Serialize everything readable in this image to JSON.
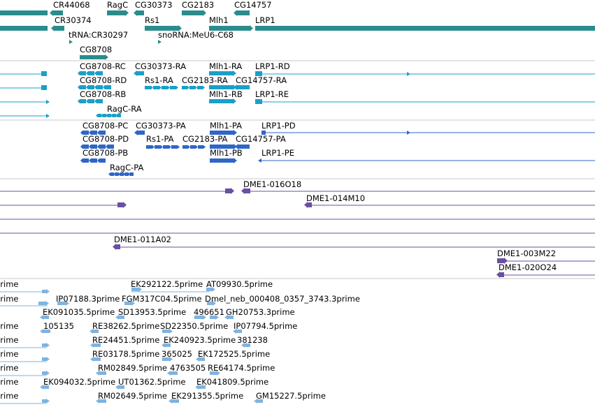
{
  "colors": {
    "teal": "#2a8c8c",
    "transcript": "#1aa0c8",
    "protein": "#2f66c8",
    "bac": "#6a4fa3",
    "est": "#7fb3e0",
    "divider": "#c8c8c8"
  },
  "tracks": [
    {
      "id": "genes",
      "color_key": "teal",
      "label_rows": [
        {
          "labels": [
            {
              "id": "cr44068",
              "text": "CR44068"
            },
            {
              "id": "ragc",
              "text": "RagC"
            },
            {
              "id": "cg30373",
              "text": "CG30373"
            },
            {
              "id": "cg2183",
              "text": "CG2183"
            },
            {
              "id": "cg14757",
              "text": "CG14757"
            }
          ]
        },
        {
          "labels": [
            {
              "id": "cr30374",
              "text": "CR30374"
            },
            {
              "id": "rs1",
              "text": "Rs1"
            },
            {
              "id": "mlh1",
              "text": "Mlh1"
            },
            {
              "id": "lrp1",
              "text": "LRP1"
            }
          ]
        },
        {
          "labels": [
            {
              "id": "trna-cr30297",
              "text": "tRNA:CR30297"
            },
            {
              "id": "snorna-meu6-c68",
              "text": "snoRNA:MeU6-C68"
            }
          ]
        },
        {
          "labels": [
            {
              "id": "cg8708",
              "text": "CG8708"
            }
          ]
        }
      ]
    },
    {
      "id": "transcripts",
      "color_key": "transcript",
      "label_rows": [
        {
          "labels": [
            {
              "id": "cg8708-rc",
              "text": "CG8708-RC"
            },
            {
              "id": "cg30373-ra",
              "text": "CG30373-RA"
            },
            {
              "id": "mlh1-ra",
              "text": "Mlh1-RA"
            },
            {
              "id": "lrp1-rd",
              "text": "LRP1-RD"
            }
          ]
        },
        {
          "labels": [
            {
              "id": "cg8708-rd",
              "text": "CG8708-RD"
            },
            {
              "id": "rs1-ra",
              "text": "Rs1-RA"
            },
            {
              "id": "cg2183-ra",
              "text": "CG2183-RA"
            },
            {
              "id": "cg14757-ra",
              "text": "CG14757-RA"
            }
          ]
        },
        {
          "labels": [
            {
              "id": "cg8708-rb",
              "text": "CG8708-RB"
            },
            {
              "id": "mlh1-rb",
              "text": "Mlh1-RB"
            },
            {
              "id": "lrp1-re",
              "text": "LRP1-RE"
            }
          ]
        },
        {
          "labels": [
            {
              "id": "ragc-ra",
              "text": "RagC-RA"
            }
          ]
        }
      ]
    },
    {
      "id": "proteins",
      "color_key": "protein",
      "label_rows": [
        {
          "labels": [
            {
              "id": "cg8708-pc",
              "text": "CG8708-PC"
            },
            {
              "id": "cg30373-pa",
              "text": "CG30373-PA"
            },
            {
              "id": "mlh1-pa",
              "text": "Mlh1-PA"
            },
            {
              "id": "lrp1-pd",
              "text": "LRP1-PD"
            }
          ]
        },
        {
          "labels": [
            {
              "id": "cg8708-pd",
              "text": "CG8708-PD"
            },
            {
              "id": "rs1-pa",
              "text": "Rs1-PA"
            },
            {
              "id": "cg2183-pa",
              "text": "CG2183-PA"
            },
            {
              "id": "cg14757-pa",
              "text": "CG14757-PA"
            }
          ]
        },
        {
          "labels": [
            {
              "id": "cg8708-pb",
              "text": "CG8708-PB"
            },
            {
              "id": "mlh1-pb",
              "text": "Mlh1-PB"
            },
            {
              "id": "lrp1-pe",
              "text": "LRP1-PE"
            }
          ]
        },
        {
          "labels": [
            {
              "id": "ragc-pa",
              "text": "RagC-PA"
            }
          ]
        }
      ]
    },
    {
      "id": "bac-clones",
      "color_key": "bac",
      "label_rows": [
        {
          "labels": [
            {
              "id": "dme1-016o18",
              "text": "DME1-016O18"
            }
          ]
        },
        {
          "labels": [
            {
              "id": "dme1-014m10",
              "text": "DME1-014M10"
            }
          ]
        },
        {
          "labels": []
        },
        {
          "labels": []
        },
        {
          "labels": [
            {
              "id": "dme1-011a02",
              "text": "DME1-011A02"
            }
          ]
        },
        {
          "labels": [
            {
              "id": "dme1-003m22",
              "text": "DME1-003M22"
            }
          ]
        },
        {
          "labels": [
            {
              "id": "dme1-020o24",
              "text": "DME1-020O24"
            }
          ]
        }
      ]
    },
    {
      "id": "est-reads",
      "color_key": "est",
      "label_rows": [
        {
          "labels": [
            {
              "id": "prime-1",
              "text": "prime"
            },
            {
              "id": "ek292122",
              "text": "EK292122.5prime"
            },
            {
              "id": "at09930",
              "text": "AT09930.5prime"
            }
          ]
        },
        {
          "labels": [
            {
              "id": "prime-2",
              "text": "prime"
            },
            {
              "id": "ip07188",
              "text": "IP07188.3prime"
            },
            {
              "id": "fgm317c04",
              "text": "FGM317C04.5prime"
            },
            {
              "id": "dmel-neb",
              "text": "Dmel_neb_000408_0357_3743.3prime"
            }
          ]
        },
        {
          "labels": [
            {
              "id": "ek091035",
              "text": "EK091035.5prime"
            },
            {
              "id": "sd13953",
              "text": "SD13953.5prime"
            },
            {
              "id": "496651",
              "text": "496651"
            },
            {
              "id": "gh20753",
              "text": "GH20753.3prime"
            }
          ]
        },
        {
          "labels": [
            {
              "id": "prime-3",
              "text": "prime"
            },
            {
              "id": "105135",
              "text": "105135"
            },
            {
              "id": "re38262",
              "text": "RE38262.5prime"
            },
            {
              "id": "sd22350",
              "text": "SD22350.5prime"
            },
            {
              "id": "ip07794",
              "text": "IP07794.5prime"
            }
          ]
        },
        {
          "labels": [
            {
              "id": "prime-4",
              "text": "prime"
            },
            {
              "id": "re24451",
              "text": "RE24451.5prime"
            },
            {
              "id": "ek240923",
              "text": "EK240923.5prime"
            },
            {
              "id": "381238",
              "text": "381238"
            }
          ]
        },
        {
          "labels": [
            {
              "id": "prime-5",
              "text": "prime"
            },
            {
              "id": "re03178",
              "text": "RE03178.5prime"
            },
            {
              "id": "365025",
              "text": "365025"
            },
            {
              "id": "ek172525",
              "text": "EK172525.5prime"
            }
          ]
        },
        {
          "labels": [
            {
              "id": "prime-6",
              "text": "prime"
            },
            {
              "id": "rm02849",
              "text": "RM02849.5prime"
            },
            {
              "id": "4763505",
              "text": "4763505"
            },
            {
              "id": "re64174",
              "text": "RE64174.5prime"
            }
          ]
        },
        {
          "labels": [
            {
              "id": "prime-7",
              "text": "prime"
            },
            {
              "id": "ek094032",
              "text": "EK094032.5prime"
            },
            {
              "id": "ut01362",
              "text": "UT01362.5prime"
            },
            {
              "id": "ek041809",
              "text": "EK041809.5prime"
            }
          ]
        },
        {
          "labels": [
            {
              "id": "prime-8",
              "text": "prime"
            },
            {
              "id": "rm02649",
              "text": "RM02649.5prime"
            },
            {
              "id": "ek291355",
              "text": "EK291355.5prime"
            },
            {
              "id": "gm15227",
              "text": "GM15227.5prime"
            }
          ]
        }
      ]
    }
  ]
}
